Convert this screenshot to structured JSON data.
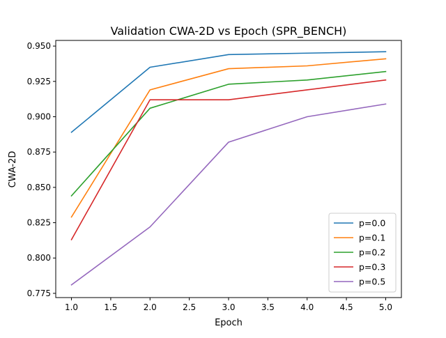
{
  "chart_data": {
    "type": "line",
    "title": "Validation CWA-2D vs Epoch (SPR_BENCH)",
    "xlabel": "Epoch",
    "ylabel": "CWA-2D",
    "xlim": [
      0.8,
      5.2
    ],
    "ylim": [
      0.772,
      0.954
    ],
    "xticks": [
      "1.0",
      "1.5",
      "2.0",
      "2.5",
      "3.0",
      "3.5",
      "4.0",
      "4.5",
      "5.0"
    ],
    "yticks": [
      "0.775",
      "0.800",
      "0.825",
      "0.850",
      "0.875",
      "0.900",
      "0.925",
      "0.950"
    ],
    "grid": false,
    "legend_position": "lower-right",
    "x": [
      1,
      2,
      3,
      4,
      5
    ],
    "series": [
      {
        "name": "p=0.0",
        "color": "#1f77b4",
        "values": [
          0.889,
          0.935,
          0.944,
          0.945,
          0.946
        ]
      },
      {
        "name": "p=0.1",
        "color": "#ff7f0e",
        "values": [
          0.829,
          0.919,
          0.934,
          0.936,
          0.941
        ]
      },
      {
        "name": "p=0.2",
        "color": "#2ca02c",
        "values": [
          0.844,
          0.906,
          0.923,
          0.926,
          0.932
        ]
      },
      {
        "name": "p=0.3",
        "color": "#d62728",
        "values": [
          0.813,
          0.912,
          0.912,
          0.919,
          0.926
        ]
      },
      {
        "name": "p=0.5",
        "color": "#9467bd",
        "values": [
          0.781,
          0.822,
          0.882,
          0.9,
          0.909
        ]
      }
    ]
  }
}
